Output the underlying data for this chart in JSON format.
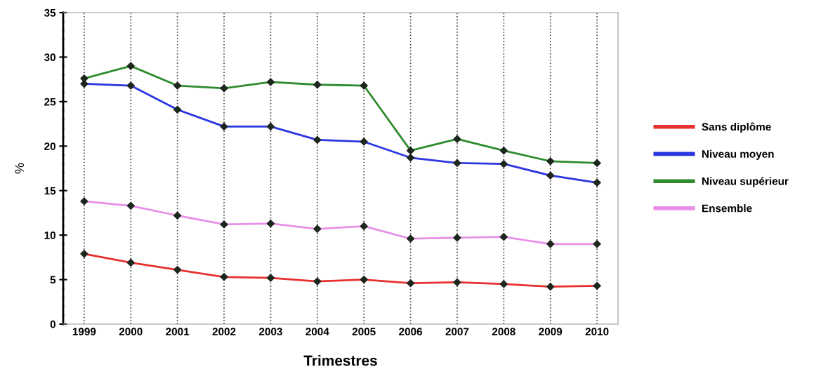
{
  "chart_data": {
    "type": "line",
    "xlabel": "Trimestres",
    "ylabel": "%",
    "categories": [
      "1999",
      "2000",
      "2001",
      "2002",
      "2003",
      "2004",
      "2005",
      "2006",
      "2007",
      "2008",
      "2009",
      "2010"
    ],
    "series": [
      {
        "name": "Sans diplôme",
        "color": "#e83030",
        "values": [
          7.9,
          6.9,
          6.1,
          5.3,
          5.2,
          4.8,
          5.0,
          4.6,
          4.7,
          4.5,
          4.2,
          4.3
        ]
      },
      {
        "name": "Niveau moyen",
        "color": "#2a36e0",
        "values": [
          27.0,
          26.8,
          24.1,
          22.2,
          22.2,
          20.7,
          20.5,
          18.7,
          18.1,
          18.0,
          16.7,
          15.9
        ]
      },
      {
        "name": "Niveau supérieur",
        "color": "#2e8b2e",
        "values": [
          27.6,
          29.0,
          26.8,
          26.5,
          27.2,
          26.9,
          26.8,
          19.5,
          20.8,
          19.5,
          18.3,
          18.1
        ]
      },
      {
        "name": "Ensemble",
        "color": "#e890e8",
        "values": [
          13.8,
          13.3,
          12.2,
          11.2,
          11.3,
          10.7,
          11.0,
          9.6,
          9.7,
          9.8,
          9.0,
          9.0
        ]
      }
    ],
    "ylim": [
      0,
      35
    ],
    "yticks": [
      0,
      5,
      10,
      15,
      20,
      25,
      30,
      35
    ],
    "grid": "x",
    "legend": "right",
    "marker": "diamond",
    "line_style": "solid"
  }
}
